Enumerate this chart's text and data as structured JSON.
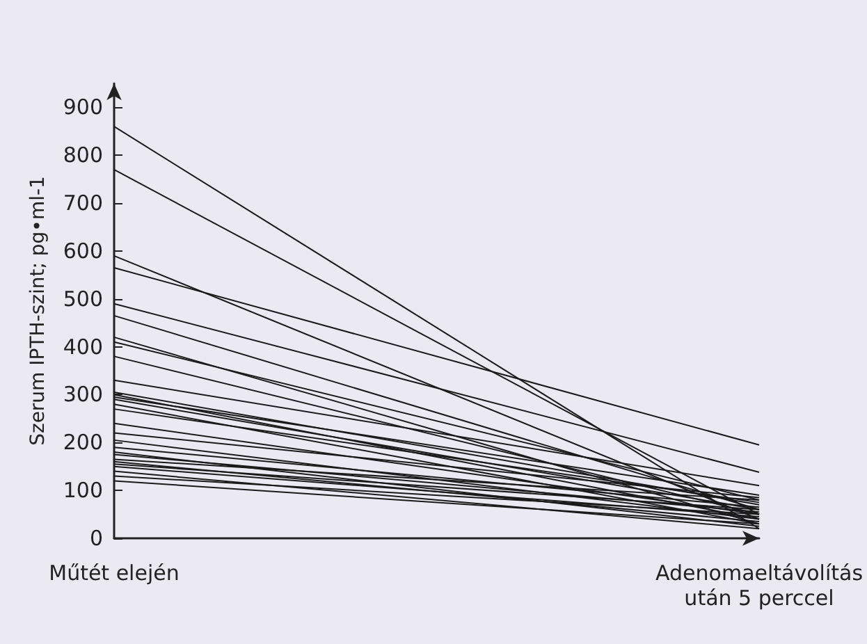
{
  "chart_data": {
    "type": "line",
    "ylabel": "Szerum IPTH-szint; pg•ml-1",
    "categories": [
      "Műtét elején",
      "Adenomaeltávolítás\nután 5 perccel"
    ],
    "ylim": [
      0,
      950
    ],
    "yticks": [
      0,
      100,
      200,
      300,
      400,
      500,
      600,
      700,
      800,
      900
    ],
    "grid": false,
    "marker": "none",
    "line_style": "solid",
    "series": [
      {
        "color": "#1a1a1a",
        "values": [
          860,
          20
        ]
      },
      {
        "color": "#1a1a1a",
        "values": [
          770,
          50
        ]
      },
      {
        "color": "#1a1a1a",
        "values": [
          590,
          40
        ]
      },
      {
        "color": "#1a1a1a",
        "values": [
          565,
          195
        ]
      },
      {
        "color": "#1a1a1a",
        "values": [
          490,
          138
        ]
      },
      {
        "color": "#1a1a1a",
        "values": [
          465,
          60
        ]
      },
      {
        "color": "#1a1a1a",
        "values": [
          420,
          30
        ]
      },
      {
        "color": "#1a1a1a",
        "values": [
          410,
          80
        ]
      },
      {
        "color": "#1a1a1a",
        "values": [
          380,
          50
        ]
      },
      {
        "color": "#1a1a1a",
        "values": [
          330,
          110
        ]
      },
      {
        "color": "#1a1a1a",
        "values": [
          305,
          70
        ]
      },
      {
        "color": "#1a1a1a",
        "values": [
          300,
          40
        ]
      },
      {
        "color": "#1a1a1a",
        "values": [
          295,
          90
        ]
      },
      {
        "color": "#1a1a1a",
        "values": [
          290,
          60
        ]
      },
      {
        "color": "#1a1a1a",
        "values": [
          280,
          30
        ]
      },
      {
        "color": "#1a1a1a",
        "values": [
          270,
          75
        ]
      },
      {
        "color": "#1a1a1a",
        "values": [
          240,
          50
        ]
      },
      {
        "color": "#1a1a1a",
        "values": [
          220,
          85
        ]
      },
      {
        "color": "#1a1a1a",
        "values": [
          205,
          40
        ]
      },
      {
        "color": "#1a1a1a",
        "values": [
          190,
          65
        ]
      },
      {
        "color": "#1a1a1a",
        "values": [
          180,
          25
        ]
      },
      {
        "color": "#1a1a1a",
        "values": [
          175,
          55
        ]
      },
      {
        "color": "#1a1a1a",
        "values": [
          165,
          80
        ]
      },
      {
        "color": "#1a1a1a",
        "values": [
          160,
          35
        ]
      },
      {
        "color": "#1a1a1a",
        "values": [
          155,
          60
        ]
      },
      {
        "color": "#1a1a1a",
        "values": [
          150,
          45
        ]
      },
      {
        "color": "#1a1a1a",
        "values": [
          140,
          20
        ]
      },
      {
        "color": "#1a1a1a",
        "values": [
          130,
          50
        ]
      },
      {
        "color": "#1a1a1a",
        "values": [
          120,
          30
        ]
      }
    ]
  }
}
